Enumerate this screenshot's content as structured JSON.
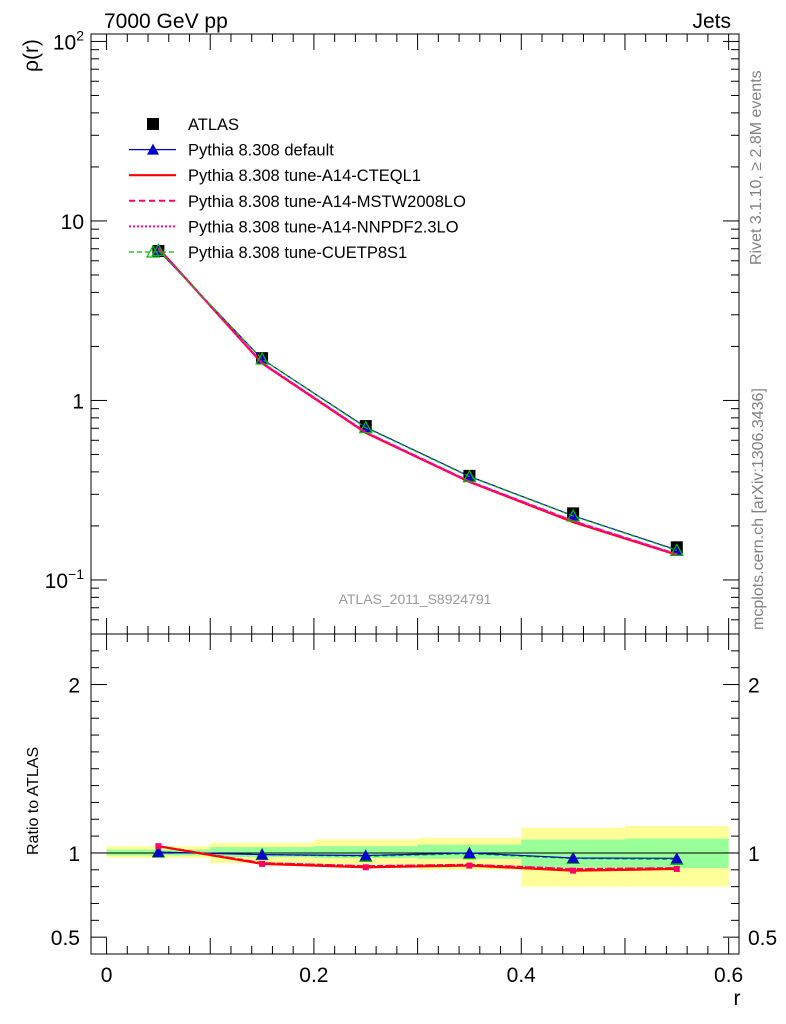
{
  "header": {
    "left": "7000 GeV pp",
    "right": "Jets"
  },
  "side_text": {
    "top": "Rivet 3.1.10, ≥ 2.8M events",
    "bottom": "mcplots.cern.ch [arXiv:1306.3436]"
  },
  "analysis_label": "ATLAS_2011_S8924791",
  "colors": {
    "atlas": "#000000",
    "default": "#0000cc",
    "cteql1": "#ff0000",
    "mstw": "#ff0066",
    "nnpdf": "#ff00cc",
    "cuetp": "#00bb00",
    "band_yellow": "#ffff99",
    "band_green": "#99ff99"
  },
  "chart_data": [
    {
      "type": "line",
      "ylabel": "ρ(r)",
      "yscale": "log",
      "ylim": [
        0.05,
        110
      ],
      "xlim": [
        -0.015,
        0.61
      ],
      "y_ticks": [
        {
          "value": 0.1,
          "base": "10",
          "exp": "−1"
        },
        {
          "value": 1,
          "base": "1",
          "exp": ""
        },
        {
          "value": 10,
          "base": "10",
          "exp": ""
        },
        {
          "value": 100,
          "base": "10",
          "exp": "2"
        }
      ],
      "x": [
        0.05,
        0.15,
        0.25,
        0.35,
        0.45,
        0.55
      ],
      "legend_position": "top-left",
      "series": [
        {
          "key": "atlas",
          "name": "ATLAS",
          "values": [
            6.8,
            1.72,
            0.72,
            0.38,
            0.235,
            0.152
          ]
        },
        {
          "key": "default",
          "name": "Pythia 8.308 default",
          "values": [
            6.85,
            1.7,
            0.71,
            0.378,
            0.228,
            0.147
          ]
        },
        {
          "key": "cteql1",
          "name": "Pythia 8.308 tune-A14-CTEQL1",
          "values": [
            7.05,
            1.61,
            0.66,
            0.352,
            0.21,
            0.138
          ]
        },
        {
          "key": "mstw",
          "name": "Pythia 8.308 tune-A14-MSTW2008LO",
          "values": [
            7.05,
            1.62,
            0.665,
            0.354,
            0.213,
            0.139
          ]
        },
        {
          "key": "nnpdf",
          "name": "Pythia 8.308 tune-A14-NNPDF2.3LO",
          "values": [
            7.05,
            1.62,
            0.665,
            0.354,
            0.213,
            0.139
          ]
        },
        {
          "key": "cuetp",
          "name": "Pythia 8.308 tune-CUETP8S1",
          "values": [
            6.85,
            1.7,
            0.705,
            0.376,
            0.227,
            0.146
          ]
        }
      ]
    },
    {
      "type": "line",
      "ylabel": "Ratio to ATLAS",
      "xlabel": "r",
      "ylim": [
        0.4,
        2.3
      ],
      "xlim": [
        -0.015,
        0.61
      ],
      "x_ticks": [
        {
          "value": 0,
          "label": "0"
        },
        {
          "value": 0.2,
          "label": "0.2"
        },
        {
          "value": 0.4,
          "label": "0.4"
        },
        {
          "value": 0.6,
          "label": "0.6"
        }
      ],
      "y_ticks": [
        {
          "value": 0.5,
          "label": "0.5"
        },
        {
          "value": 1,
          "label": "1"
        },
        {
          "value": 2,
          "label": "2"
        }
      ],
      "bands": {
        "edges": [
          0,
          0.1,
          0.2,
          0.3,
          0.4,
          0.5,
          0.6
        ],
        "yellow": [
          [
            0.97,
            1.04
          ],
          [
            0.94,
            1.06
          ],
          [
            0.93,
            1.08
          ],
          [
            0.9,
            1.09
          ],
          [
            0.8,
            1.15
          ],
          [
            0.8,
            1.16
          ]
        ],
        "green": [
          [
            0.985,
            1.02
          ],
          [
            0.975,
            1.035
          ],
          [
            0.97,
            1.04
          ],
          [
            0.965,
            1.05
          ],
          [
            0.915,
            1.08
          ],
          [
            0.91,
            1.085
          ]
        ]
      },
      "x": [
        0.05,
        0.15,
        0.25,
        0.35,
        0.45,
        0.55
      ],
      "series": [
        {
          "key": "default",
          "values": [
            1.005,
            0.99,
            0.985,
            1.0,
            0.97,
            0.968
          ]
        },
        {
          "key": "cteql1",
          "values": [
            1.04,
            0.935,
            0.915,
            0.925,
            0.895,
            0.905
          ]
        },
        {
          "key": "mstw",
          "values": [
            1.04,
            0.94,
            0.922,
            0.93,
            0.905,
            0.91
          ]
        },
        {
          "key": "nnpdf",
          "values": [
            1.04,
            0.94,
            0.922,
            0.93,
            0.905,
            0.91
          ]
        },
        {
          "key": "cuetp",
          "values": [
            1.005,
            0.99,
            0.98,
            0.995,
            0.967,
            0.962
          ]
        }
      ]
    }
  ]
}
